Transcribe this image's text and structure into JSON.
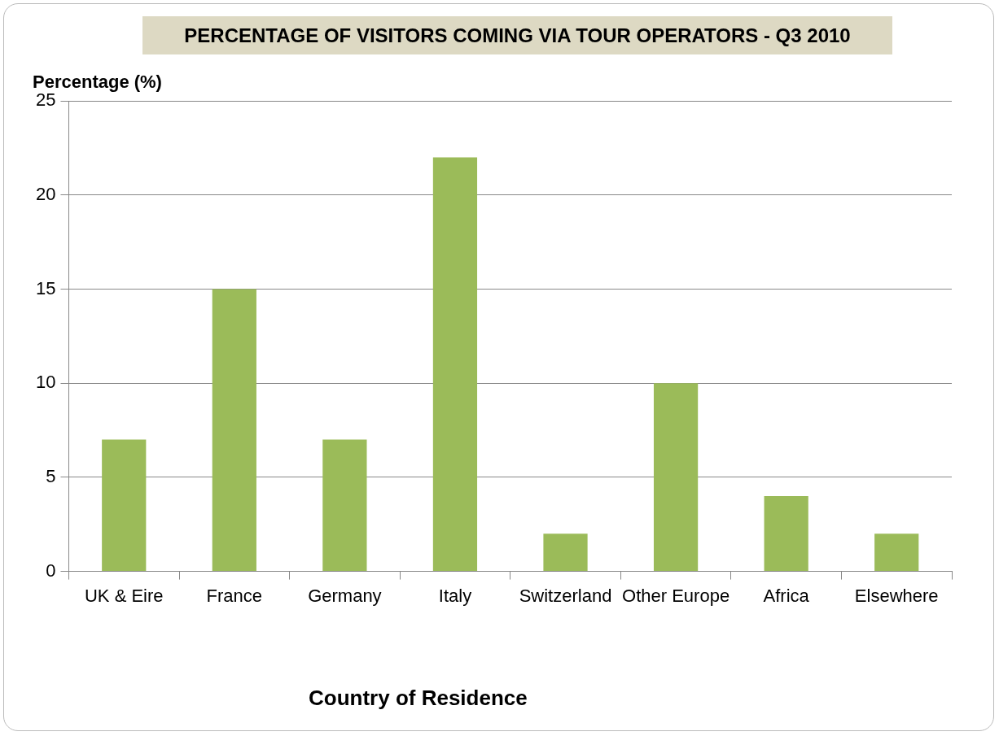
{
  "chart_data": {
    "type": "bar",
    "title": "PERCENTAGE OF VISITORS COMING VIA TOUR OPERATORS - Q3 2010",
    "xlabel": "Country of Residence",
    "ylabel": "Percentage (%)",
    "categories": [
      "UK & Eire",
      "France",
      "Germany",
      "Italy",
      "Switzerland",
      "Other Europe",
      "Africa",
      "Elsewhere"
    ],
    "values": [
      7,
      15,
      7,
      22,
      2,
      10,
      4,
      2
    ],
    "color": "#9bbb59",
    "ylim": [
      0,
      25
    ],
    "yticks": [
      0,
      5,
      10,
      15,
      20,
      25
    ],
    "grid": "y",
    "legend": false
  }
}
